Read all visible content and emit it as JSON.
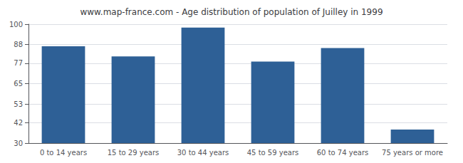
{
  "chart_data": {
    "type": "bar",
    "title": "www.map-france.com - Age distribution of population of Juilley in 1999",
    "categories": [
      "0 to 14 years",
      "15 to 29 years",
      "30 to 44 years",
      "45 to 59 years",
      "60 to 74 years",
      "75 years or more"
    ],
    "values": [
      87,
      81,
      98,
      78,
      86,
      38
    ],
    "color": "#2e6096",
    "ylim": [
      30,
      100
    ],
    "yticks": [
      30,
      42,
      53,
      65,
      77,
      88,
      100
    ],
    "grid": true
  }
}
